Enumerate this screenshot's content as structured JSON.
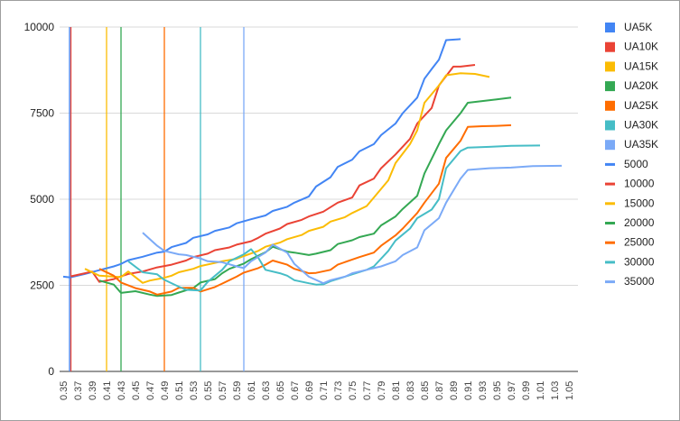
{
  "chart_data": {
    "type": "line",
    "title": "",
    "xlabel": "",
    "ylabel": "",
    "ylim": [
      0,
      10000
    ],
    "yticks": [
      0,
      2500,
      5000,
      7500,
      10000
    ],
    "ytick_labels": [
      "0",
      "2500",
      "5000",
      "7500",
      "10000"
    ],
    "xlim": [
      0.35,
      1.05
    ],
    "xtick_labels": [
      "0.35",
      "0.37",
      "0.39",
      "0.41",
      "0.43",
      "0.45",
      "0.47",
      "0.49",
      "0.51",
      "0.53",
      "0.55",
      "0.57",
      "0.59",
      "0.61",
      "0.63",
      "0.65",
      "0.67",
      "0.69",
      "0.71",
      "0.73",
      "0.75",
      "0.77",
      "0.79",
      "0.81",
      "0.83",
      "0.85",
      "0.87",
      "0.89",
      "0.91",
      "0.93",
      "0.95",
      "0.97",
      "0.99",
      "1.01",
      "1.03",
      "1.05"
    ],
    "grid": "horizontal",
    "legend_position": "right",
    "vertical_markers": [
      {
        "name": "UA5K",
        "x": 0.36,
        "color": "#4285f4"
      },
      {
        "name": "UA10K",
        "x": 0.36,
        "color": "#ea4335"
      },
      {
        "name": "UA15K",
        "x": 0.41,
        "color": "#fbbc04"
      },
      {
        "name": "UA20K",
        "x": 0.43,
        "color": "#34a853"
      },
      {
        "name": "UA25K",
        "x": 0.49,
        "color": "#ff6d01"
      },
      {
        "name": "UA30K",
        "x": 0.54,
        "color": "#46bdc6"
      },
      {
        "name": "UA35K",
        "x": 0.6,
        "color": "#7baaf7"
      }
    ],
    "series": [
      {
        "name": "5000",
        "color": "#4285f4",
        "points": [
          [
            0.35,
            2750
          ],
          [
            0.36,
            2730
          ],
          [
            0.38,
            2830
          ],
          [
            0.4,
            2940
          ],
          [
            0.42,
            3050
          ],
          [
            0.43,
            3120
          ],
          [
            0.44,
            3230
          ],
          [
            0.46,
            3330
          ],
          [
            0.48,
            3450
          ],
          [
            0.49,
            3480
          ],
          [
            0.5,
            3610
          ],
          [
            0.52,
            3730
          ],
          [
            0.53,
            3880
          ],
          [
            0.55,
            3980
          ],
          [
            0.56,
            4080
          ],
          [
            0.58,
            4180
          ],
          [
            0.59,
            4300
          ],
          [
            0.61,
            4420
          ],
          [
            0.63,
            4530
          ],
          [
            0.64,
            4660
          ],
          [
            0.66,
            4780
          ],
          [
            0.67,
            4900
          ],
          [
            0.69,
            5080
          ],
          [
            0.7,
            5370
          ],
          [
            0.72,
            5640
          ],
          [
            0.73,
            5940
          ],
          [
            0.75,
            6150
          ],
          [
            0.76,
            6390
          ],
          [
            0.78,
            6600
          ],
          [
            0.79,
            6860
          ],
          [
            0.81,
            7200
          ],
          [
            0.82,
            7500
          ],
          [
            0.84,
            7950
          ],
          [
            0.85,
            8500
          ],
          [
            0.86,
            8780
          ],
          [
            0.87,
            9050
          ],
          [
            0.88,
            9620
          ],
          [
            0.9,
            9650
          ]
        ]
      },
      {
        "name": "10000",
        "color": "#ea4335",
        "points": [
          [
            0.36,
            2760
          ],
          [
            0.38,
            2850
          ],
          [
            0.39,
            2900
          ],
          [
            0.4,
            2600
          ],
          [
            0.41,
            2640
          ],
          [
            0.42,
            2680
          ],
          [
            0.43,
            2760
          ],
          [
            0.44,
            2830
          ],
          [
            0.46,
            2900
          ],
          [
            0.48,
            3020
          ],
          [
            0.49,
            3060
          ],
          [
            0.5,
            3100
          ],
          [
            0.52,
            3220
          ],
          [
            0.53,
            3320
          ],
          [
            0.55,
            3420
          ],
          [
            0.56,
            3520
          ],
          [
            0.58,
            3600
          ],
          [
            0.59,
            3680
          ],
          [
            0.61,
            3780
          ],
          [
            0.62,
            3880
          ],
          [
            0.63,
            4000
          ],
          [
            0.65,
            4150
          ],
          [
            0.66,
            4280
          ],
          [
            0.68,
            4400
          ],
          [
            0.69,
            4500
          ],
          [
            0.71,
            4640
          ],
          [
            0.72,
            4770
          ],
          [
            0.73,
            4900
          ],
          [
            0.75,
            5050
          ],
          [
            0.76,
            5400
          ],
          [
            0.78,
            5600
          ],
          [
            0.79,
            5900
          ],
          [
            0.81,
            6300
          ],
          [
            0.83,
            6750
          ],
          [
            0.84,
            7200
          ],
          [
            0.86,
            7650
          ],
          [
            0.87,
            8300
          ],
          [
            0.89,
            8850
          ],
          [
            0.9,
            8850
          ],
          [
            0.92,
            8900
          ]
        ]
      },
      {
        "name": "15000",
        "color": "#fbbc04",
        "points": [
          [
            0.38,
            2980
          ],
          [
            0.4,
            2780
          ],
          [
            0.42,
            2750
          ],
          [
            0.43,
            2740
          ],
          [
            0.44,
            2900
          ],
          [
            0.46,
            2570
          ],
          [
            0.47,
            2640
          ],
          [
            0.49,
            2720
          ],
          [
            0.5,
            2780
          ],
          [
            0.51,
            2880
          ],
          [
            0.53,
            2980
          ],
          [
            0.54,
            3060
          ],
          [
            0.56,
            3150
          ],
          [
            0.57,
            3200
          ],
          [
            0.59,
            3270
          ],
          [
            0.6,
            3350
          ],
          [
            0.62,
            3500
          ],
          [
            0.63,
            3620
          ],
          [
            0.65,
            3740
          ],
          [
            0.66,
            3840
          ],
          [
            0.68,
            3960
          ],
          [
            0.69,
            4080
          ],
          [
            0.71,
            4200
          ],
          [
            0.72,
            4350
          ],
          [
            0.74,
            4480
          ],
          [
            0.75,
            4600
          ],
          [
            0.77,
            4800
          ],
          [
            0.78,
            5050
          ],
          [
            0.8,
            5550
          ],
          [
            0.81,
            6050
          ],
          [
            0.83,
            6600
          ],
          [
            0.84,
            7000
          ],
          [
            0.85,
            7800
          ],
          [
            0.87,
            8300
          ],
          [
            0.88,
            8600
          ],
          [
            0.9,
            8660
          ],
          [
            0.92,
            8640
          ],
          [
            0.94,
            8550
          ]
        ]
      },
      {
        "name": "20000",
        "color": "#34a853",
        "points": [
          [
            0.4,
            2640
          ],
          [
            0.42,
            2520
          ],
          [
            0.43,
            2280
          ],
          [
            0.45,
            2330
          ],
          [
            0.47,
            2230
          ],
          [
            0.48,
            2190
          ],
          [
            0.5,
            2220
          ],
          [
            0.51,
            2290
          ],
          [
            0.53,
            2420
          ],
          [
            0.54,
            2580
          ],
          [
            0.56,
            2680
          ],
          [
            0.57,
            2850
          ],
          [
            0.58,
            2980
          ],
          [
            0.6,
            3130
          ],
          [
            0.61,
            3260
          ],
          [
            0.63,
            3460
          ],
          [
            0.64,
            3620
          ],
          [
            0.66,
            3480
          ],
          [
            0.67,
            3450
          ],
          [
            0.69,
            3380
          ],
          [
            0.7,
            3420
          ],
          [
            0.72,
            3520
          ],
          [
            0.73,
            3700
          ],
          [
            0.75,
            3810
          ],
          [
            0.76,
            3900
          ],
          [
            0.78,
            4000
          ],
          [
            0.79,
            4240
          ],
          [
            0.81,
            4500
          ],
          [
            0.82,
            4720
          ],
          [
            0.84,
            5100
          ],
          [
            0.85,
            5750
          ],
          [
            0.87,
            6600
          ],
          [
            0.88,
            7000
          ],
          [
            0.9,
            7500
          ],
          [
            0.91,
            7800
          ],
          [
            0.93,
            7850
          ],
          [
            0.95,
            7900
          ],
          [
            0.97,
            7950
          ]
        ]
      },
      {
        "name": "25000",
        "color": "#ff6d01",
        "points": [
          [
            0.4,
            2980
          ],
          [
            0.42,
            2780
          ],
          [
            0.43,
            2580
          ],
          [
            0.45,
            2420
          ],
          [
            0.47,
            2320
          ],
          [
            0.48,
            2230
          ],
          [
            0.5,
            2320
          ],
          [
            0.51,
            2430
          ],
          [
            0.53,
            2430
          ],
          [
            0.54,
            2320
          ],
          [
            0.56,
            2450
          ],
          [
            0.57,
            2550
          ],
          [
            0.59,
            2750
          ],
          [
            0.6,
            2870
          ],
          [
            0.62,
            3000
          ],
          [
            0.63,
            3100
          ],
          [
            0.64,
            3220
          ],
          [
            0.66,
            3100
          ],
          [
            0.67,
            2980
          ],
          [
            0.69,
            2850
          ],
          [
            0.7,
            2860
          ],
          [
            0.72,
            2950
          ],
          [
            0.73,
            3100
          ],
          [
            0.75,
            3250
          ],
          [
            0.76,
            3320
          ],
          [
            0.78,
            3450
          ],
          [
            0.79,
            3650
          ],
          [
            0.81,
            3950
          ],
          [
            0.82,
            4150
          ],
          [
            0.84,
            4600
          ],
          [
            0.85,
            4900
          ],
          [
            0.87,
            5450
          ],
          [
            0.88,
            6200
          ],
          [
            0.9,
            6700
          ],
          [
            0.91,
            7100
          ],
          [
            0.93,
            7120
          ],
          [
            0.95,
            7130
          ],
          [
            0.97,
            7150
          ]
        ]
      },
      {
        "name": "30000",
        "color": "#46bdc6",
        "points": [
          [
            0.44,
            3200
          ],
          [
            0.46,
            2880
          ],
          [
            0.48,
            2820
          ],
          [
            0.49,
            2660
          ],
          [
            0.51,
            2460
          ],
          [
            0.52,
            2370
          ],
          [
            0.54,
            2350
          ],
          [
            0.55,
            2600
          ],
          [
            0.57,
            2950
          ],
          [
            0.58,
            3200
          ],
          [
            0.6,
            3400
          ],
          [
            0.61,
            3550
          ],
          [
            0.62,
            3300
          ],
          [
            0.63,
            2950
          ],
          [
            0.65,
            2850
          ],
          [
            0.66,
            2780
          ],
          [
            0.67,
            2650
          ],
          [
            0.69,
            2560
          ],
          [
            0.7,
            2520
          ],
          [
            0.71,
            2530
          ],
          [
            0.72,
            2620
          ],
          [
            0.74,
            2750
          ],
          [
            0.75,
            2820
          ],
          [
            0.77,
            2950
          ],
          [
            0.78,
            3050
          ],
          [
            0.8,
            3500
          ],
          [
            0.81,
            3800
          ],
          [
            0.83,
            4150
          ],
          [
            0.84,
            4450
          ],
          [
            0.86,
            4700
          ],
          [
            0.87,
            5000
          ],
          [
            0.88,
            5900
          ],
          [
            0.9,
            6400
          ],
          [
            0.91,
            6500
          ],
          [
            0.94,
            6520
          ],
          [
            0.97,
            6550
          ],
          [
            1.01,
            6560
          ]
        ]
      },
      {
        "name": "35000",
        "color": "#7baaf7",
        "points": [
          [
            0.46,
            4030
          ],
          [
            0.48,
            3650
          ],
          [
            0.49,
            3500
          ],
          [
            0.51,
            3400
          ],
          [
            0.52,
            3380
          ],
          [
            0.54,
            3280
          ],
          [
            0.55,
            3200
          ],
          [
            0.57,
            3170
          ],
          [
            0.59,
            3050
          ],
          [
            0.6,
            3000
          ],
          [
            0.61,
            3200
          ],
          [
            0.63,
            3450
          ],
          [
            0.64,
            3680
          ],
          [
            0.66,
            3450
          ],
          [
            0.67,
            3120
          ],
          [
            0.69,
            2750
          ],
          [
            0.71,
            2560
          ],
          [
            0.72,
            2650
          ],
          [
            0.74,
            2750
          ],
          [
            0.75,
            2850
          ],
          [
            0.77,
            2950
          ],
          [
            0.79,
            3050
          ],
          [
            0.81,
            3200
          ],
          [
            0.82,
            3380
          ],
          [
            0.84,
            3600
          ],
          [
            0.85,
            4100
          ],
          [
            0.87,
            4450
          ],
          [
            0.88,
            4900
          ],
          [
            0.9,
            5600
          ],
          [
            0.91,
            5850
          ],
          [
            0.94,
            5900
          ],
          [
            0.97,
            5920
          ],
          [
            1.0,
            5960
          ],
          [
            1.04,
            5970
          ]
        ]
      }
    ]
  },
  "legend": {
    "items": [
      {
        "label": "UA5K",
        "color": "#4285f4",
        "shape": "square"
      },
      {
        "label": "UA10K",
        "color": "#ea4335",
        "shape": "square"
      },
      {
        "label": "UA15K",
        "color": "#fbbc04",
        "shape": "square"
      },
      {
        "label": "UA20K",
        "color": "#34a853",
        "shape": "square"
      },
      {
        "label": "UA25K",
        "color": "#ff6d01",
        "shape": "square"
      },
      {
        "label": "UA30K",
        "color": "#46bdc6",
        "shape": "square"
      },
      {
        "label": "UA35K",
        "color": "#7baaf7",
        "shape": "square"
      },
      {
        "label": "5000",
        "color": "#4285f4",
        "shape": "line"
      },
      {
        "label": "10000",
        "color": "#ea4335",
        "shape": "line"
      },
      {
        "label": "15000",
        "color": "#fbbc04",
        "shape": "line"
      },
      {
        "label": "20000",
        "color": "#34a853",
        "shape": "line"
      },
      {
        "label": "25000",
        "color": "#ff6d01",
        "shape": "line"
      },
      {
        "label": "30000",
        "color": "#46bdc6",
        "shape": "line"
      },
      {
        "label": "35000",
        "color": "#7baaf7",
        "shape": "line"
      }
    ]
  }
}
